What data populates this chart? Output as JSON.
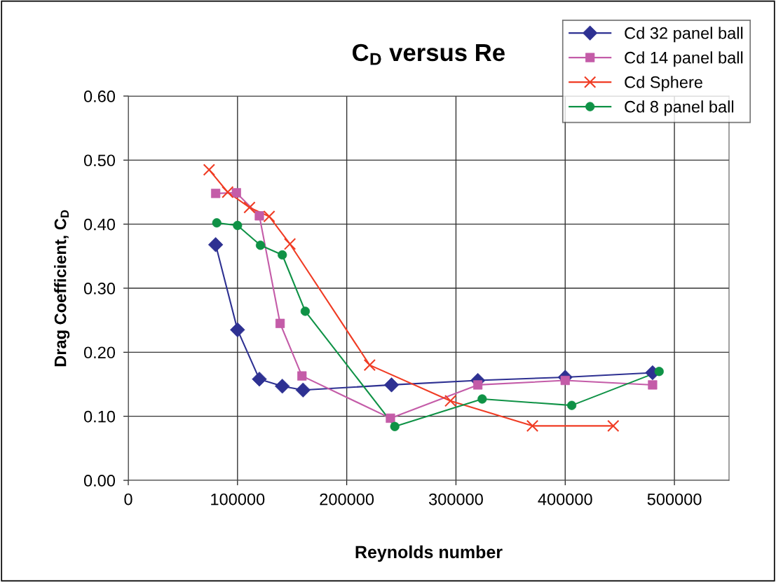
{
  "chart_data": {
    "type": "line",
    "title": "C$_{D}$ versus Re",
    "xlabel": "Reynolds number",
    "ylabel": "Drag Coefficient, C$_{D}$",
    "xlim": [
      0,
      550000
    ],
    "xticks": [
      0,
      100000,
      200000,
      300000,
      400000,
      500000
    ],
    "ylim": [
      0,
      0.6
    ],
    "yticks": [
      {
        "value": 0,
        "label": "0.00"
      },
      {
        "value": 0.1,
        "label": "0.10"
      },
      {
        "value": 0.2,
        "label": "0.20"
      },
      {
        "value": 0.3,
        "label": "0.30"
      },
      {
        "value": 0.4,
        "label": "0.40"
      },
      {
        "value": 0.5,
        "label": "0.50"
      },
      {
        "value": 0.6,
        "label": "0.60"
      }
    ],
    "grid": true,
    "legend": "top right",
    "line_style": "solid",
    "series": [
      {
        "name": "Cd 32 panel ball",
        "color": "#2e3192",
        "marker": "diamond",
        "x": [
          80000,
          100000,
          120000,
          141000,
          160000,
          241000,
          320000,
          400000,
          480000
        ],
        "values": [
          0.368,
          0.235,
          0.158,
          0.147,
          0.141,
          0.149,
          0.156,
          0.161,
          0.168
        ]
      },
      {
        "name": "Cd 14 panel ball",
        "color": "#c45ca8",
        "marker": "square",
        "x": [
          80000,
          99000,
          120000,
          139000,
          159000,
          240000,
          320000,
          400000,
          480000
        ],
        "values": [
          0.448,
          0.449,
          0.413,
          0.245,
          0.163,
          0.097,
          0.149,
          0.156,
          0.149
        ]
      },
      {
        "name": "Cd Sphere",
        "color": "#f03c24",
        "marker": "cross",
        "x": [
          74000,
          91000,
          111000,
          129000,
          148000,
          221000,
          295000,
          370000,
          444000
        ],
        "values": [
          0.485,
          0.45,
          0.426,
          0.412,
          0.369,
          0.18,
          0.124,
          0.085,
          0.085
        ]
      },
      {
        "name": "Cd 8 panel ball",
        "color": "#0f9246",
        "marker": "circle",
        "x": [
          81000,
          100000,
          121000,
          141000,
          162000,
          244000,
          324000,
          406000,
          486000
        ],
        "values": [
          0.402,
          0.398,
          0.367,
          0.352,
          0.264,
          0.084,
          0.127,
          0.117,
          0.17
        ]
      }
    ]
  }
}
